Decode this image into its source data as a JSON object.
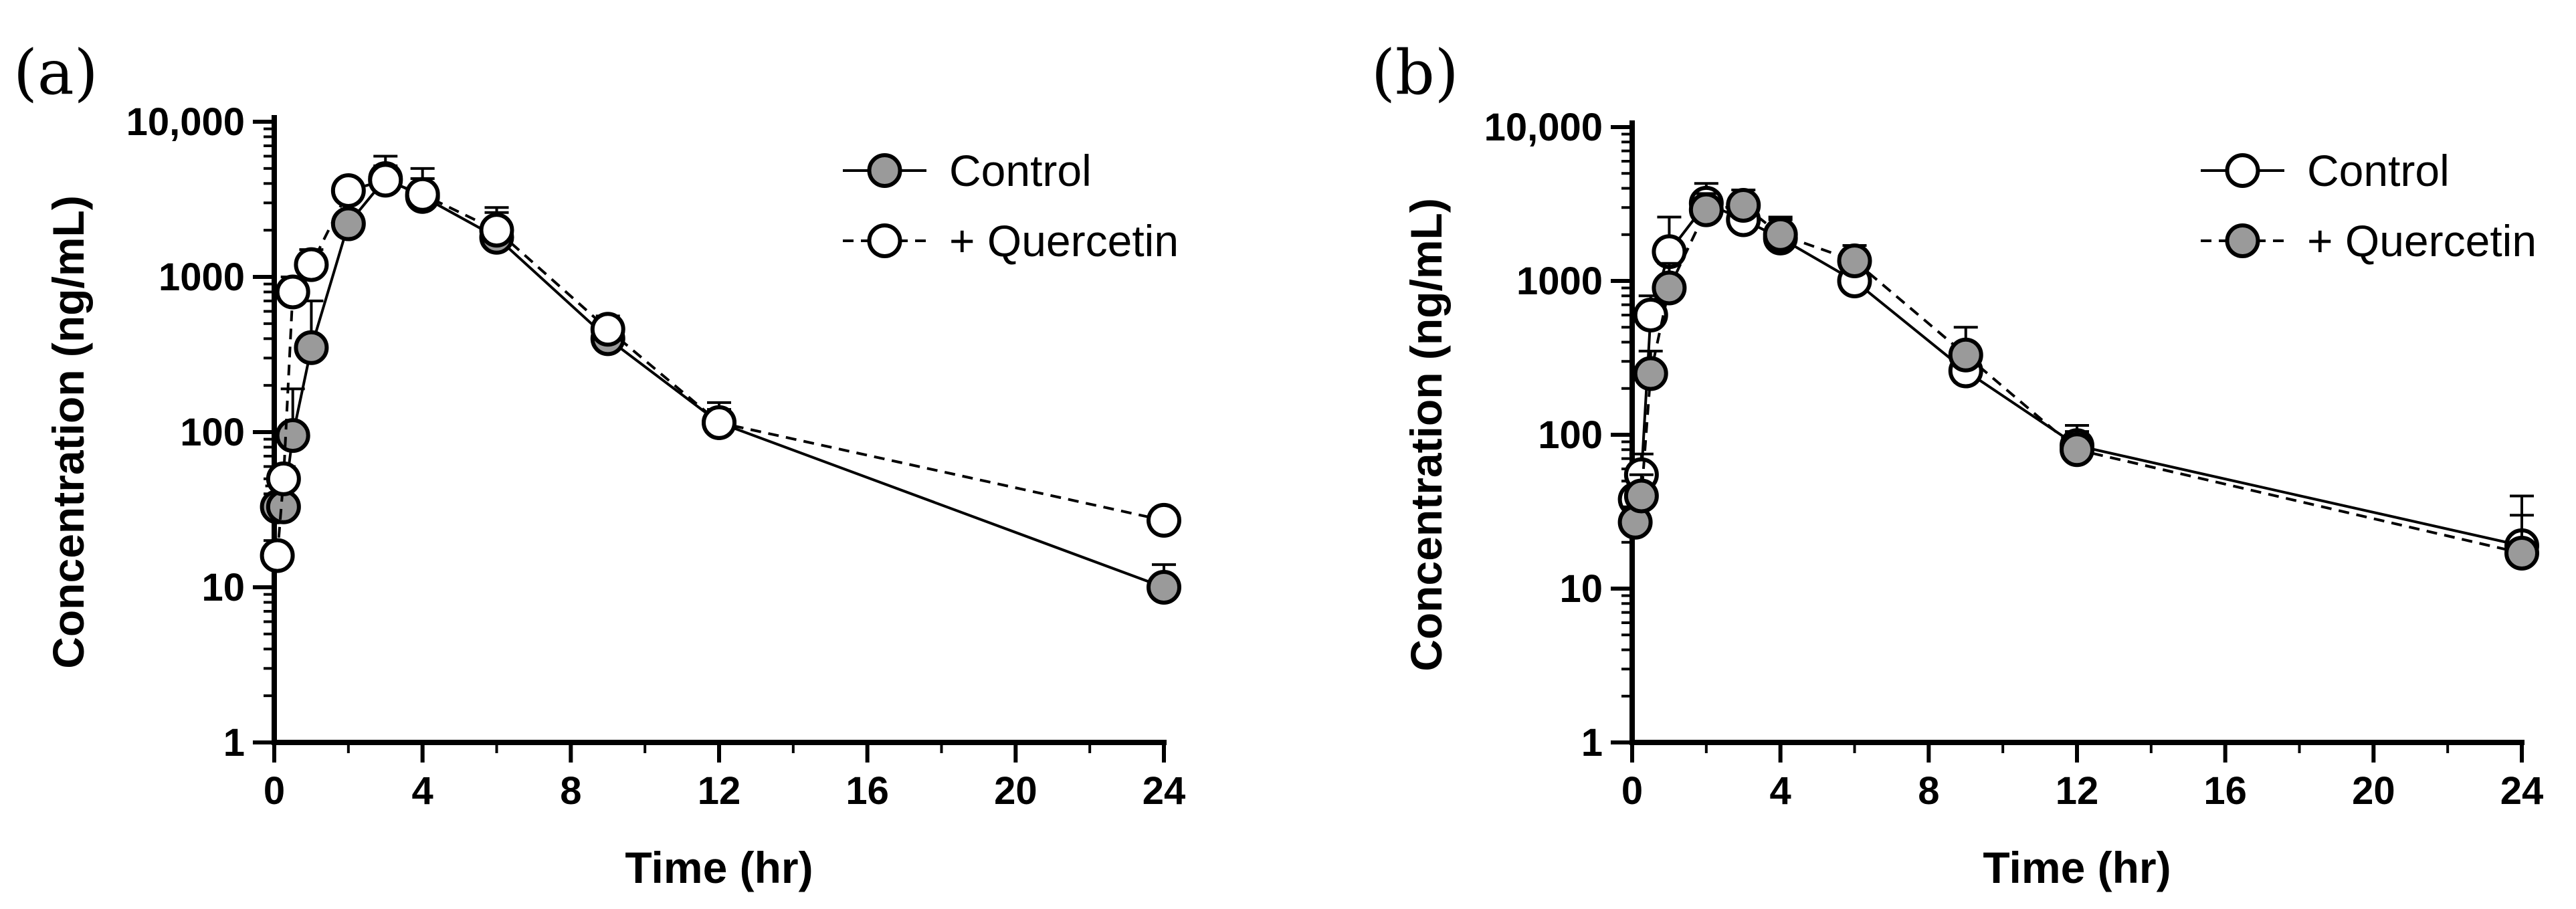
{
  "chart_data": [
    {
      "panel_label": "(a)",
      "type": "line",
      "xlabel": "Time (hr)",
      "ylabel": "Concentration (ng/mL)",
      "yscale": "log",
      "xlim": [
        0,
        24
      ],
      "ylim": [
        1,
        10000
      ],
      "xticks": [
        0,
        4,
        8,
        12,
        16,
        20,
        24
      ],
      "xtick_labels": [
        "0",
        "4",
        "8",
        "12",
        "16",
        "20",
        "24"
      ],
      "yticks": [
        1,
        10,
        100,
        1000,
        10000
      ],
      "ytick_labels": [
        "1",
        "10",
        "100",
        "1000",
        "10,000"
      ],
      "grid": false,
      "legend": "top-right",
      "series": [
        {
          "name": "Control",
          "marker": "filled",
          "line": "solid",
          "x": [
            0.083,
            0.25,
            0.5,
            1,
            2,
            3,
            4,
            6,
            9,
            12,
            24
          ],
          "y": [
            33,
            33,
            95,
            350,
            2200,
            4300,
            3300,
            1800,
            400,
            115,
            10
          ],
          "error_upper": [
            45,
            45,
            190,
            700,
            2600,
            6000,
            5000,
            2600,
            470,
            155,
            14
          ]
        },
        {
          "name": "+ Quercetin",
          "marker": "open",
          "line": "dashed",
          "x": [
            0.083,
            0.25,
            0.5,
            1,
            2,
            3,
            4,
            6,
            9,
            12,
            24
          ],
          "y": [
            16,
            50,
            800,
            1200,
            3600,
            4200,
            3400,
            2000,
            460,
            115,
            27
          ],
          "error_upper": [
            19,
            60,
            1000,
            1500,
            4200,
            5200,
            4300,
            2800,
            560,
            140,
            32
          ]
        }
      ]
    },
    {
      "panel_label": "(b)",
      "type": "line",
      "xlabel": "Time (hr)",
      "ylabel": "Concentration (ng/mL)",
      "yscale": "log",
      "xlim": [
        0,
        24
      ],
      "ylim": [
        1,
        10000
      ],
      "xticks": [
        0,
        4,
        8,
        12,
        16,
        20,
        24
      ],
      "xtick_labels": [
        "0",
        "4",
        "8",
        "12",
        "16",
        "20",
        "24"
      ],
      "yticks": [
        1,
        10,
        100,
        1000,
        10000
      ],
      "ytick_labels": [
        "1",
        "10",
        "100",
        "1000",
        "10,000"
      ],
      "grid": false,
      "legend": "top-right",
      "series": [
        {
          "name": "Control",
          "marker": "open",
          "line": "solid",
          "x": [
            0.083,
            0.25,
            0.5,
            1,
            2,
            3,
            4,
            6,
            9,
            12,
            24
          ],
          "y": [
            38,
            55,
            600,
            1550,
            3200,
            2500,
            1900,
            1000,
            260,
            85,
            19
          ],
          "error_upper": [
            45,
            75,
            800,
            2600,
            4300,
            3600,
            2500,
            1300,
            320,
            105,
            40
          ]
        },
        {
          "name": "+ Quercetin",
          "marker": "filled",
          "line": "dashed",
          "x": [
            0.083,
            0.25,
            0.5,
            1,
            2,
            3,
            4,
            6,
            9,
            12,
            24
          ],
          "y": [
            27,
            40,
            250,
            900,
            2900,
            3100,
            2000,
            1350,
            330,
            80,
            17
          ],
          "error_upper": [
            34,
            55,
            350,
            1300,
            3700,
            3900,
            2600,
            1700,
            500,
            115,
            30
          ]
        }
      ]
    }
  ]
}
